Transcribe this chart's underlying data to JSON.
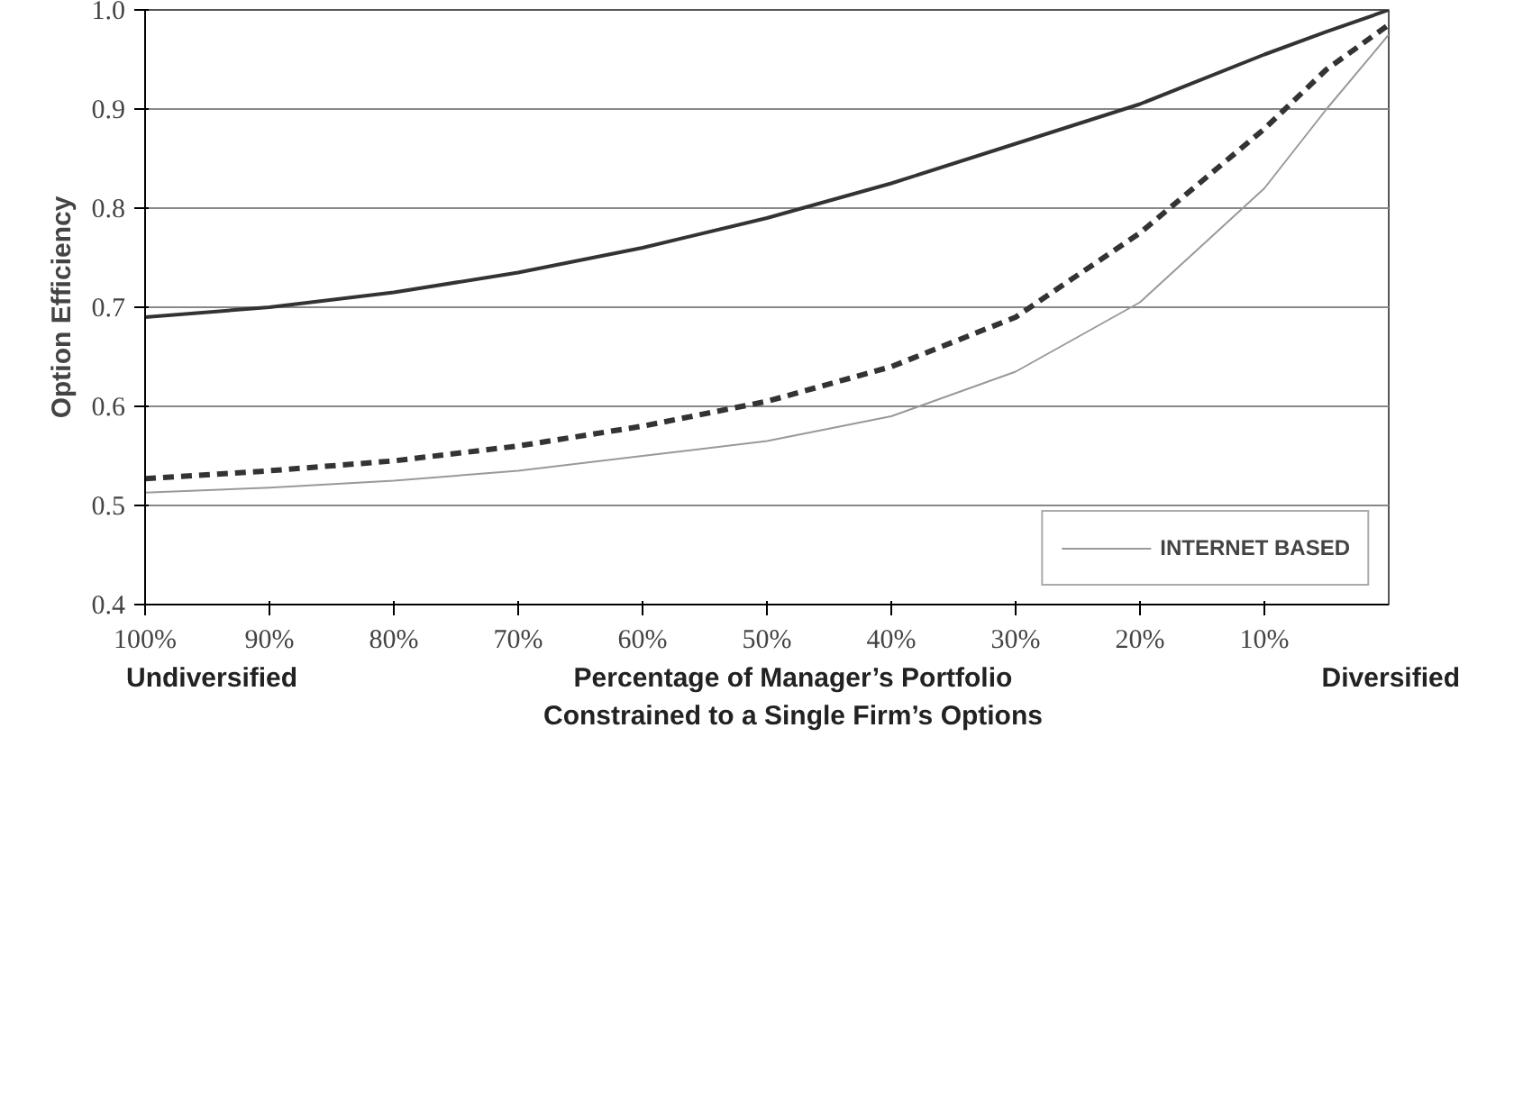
{
  "chart_data": {
    "type": "line",
    "ylabel": "Option Efficiency",
    "xlabel": "Percentage of Manager’s Portfolio\nConstrained to a Single Firm’s Options",
    "x": [
      100,
      90,
      80,
      70,
      60,
      50,
      40,
      30,
      20,
      10,
      5,
      0
    ],
    "series": [
      {
        "color": "#333333",
        "line_style": "solid",
        "values": [
          0.69,
          0.7,
          0.715,
          0.735,
          0.76,
          0.79,
          0.825,
          0.865,
          0.905,
          0.955,
          0.978,
          1.0
        ]
      },
      {
        "color": "#333333",
        "line_style": "dashed",
        "values": [
          0.527,
          0.535,
          0.545,
          0.56,
          0.58,
          0.605,
          0.64,
          0.69,
          0.775,
          0.88,
          0.94,
          0.985
        ]
      },
      {
        "name": "INTERNET BASED",
        "color": "#999999",
        "line_style": "solid",
        "values": [
          0.513,
          0.518,
          0.525,
          0.535,
          0.55,
          0.565,
          0.59,
          0.635,
          0.705,
          0.82,
          0.9,
          0.975
        ]
      }
    ],
    "xlim": [
      100,
      0
    ],
    "ylim": [
      0.4,
      1.0
    ],
    "xticks": [
      {
        "value": 100,
        "label": "100%"
      },
      {
        "value": 90,
        "label": "90%"
      },
      {
        "value": 80,
        "label": "80%"
      },
      {
        "value": 70,
        "label": "70%"
      },
      {
        "value": 60,
        "label": "60%"
      },
      {
        "value": 50,
        "label": "50%"
      },
      {
        "value": 40,
        "label": "40%"
      },
      {
        "value": 30,
        "label": "30%"
      },
      {
        "value": 20,
        "label": "20%"
      },
      {
        "value": 10,
        "label": "10%"
      }
    ],
    "yticks": [
      {
        "value": 0.4,
        "label": "0.4"
      },
      {
        "value": 0.5,
        "label": "0.5"
      },
      {
        "value": 0.6,
        "label": "0.6"
      },
      {
        "value": 0.7,
        "label": "0.7"
      },
      {
        "value": 0.8,
        "label": "0.8"
      },
      {
        "value": 0.9,
        "label": "0.9"
      },
      {
        "value": 1.0,
        "label": "1.0"
      }
    ],
    "annotations": [
      "Undiversified",
      "Diversified"
    ],
    "grid": "y",
    "legend": "bottom right",
    "marker": "none"
  }
}
